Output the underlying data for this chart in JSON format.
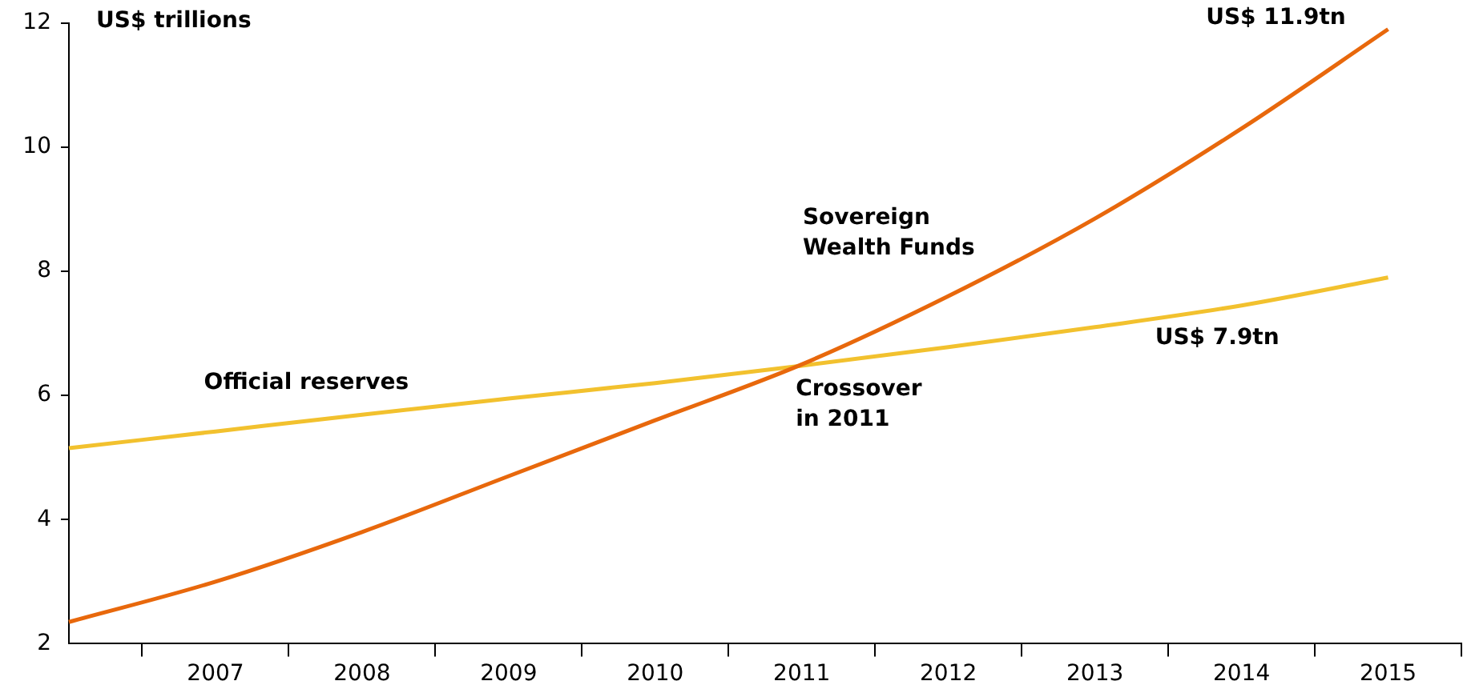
{
  "chart_data": {
    "type": "line",
    "ylabel": "US$ trillions",
    "x": [
      2006,
      2007,
      2008,
      2009,
      2010,
      2011,
      2012,
      2013,
      2014,
      2015
    ],
    "series": [
      {
        "name": "Sovereign Wealth Funds",
        "color": "#e8680c",
        "values": [
          2.35,
          3.0,
          3.8,
          4.7,
          5.6,
          6.5,
          7.6,
          8.85,
          10.3,
          11.9
        ]
      },
      {
        "name": "Official reserves",
        "color": "#f2c12e",
        "values": [
          5.15,
          5.42,
          5.69,
          5.95,
          6.2,
          6.48,
          6.78,
          7.1,
          7.45,
          7.9
        ]
      }
    ],
    "xlim": [
      2006,
      2015.5
    ],
    "xticks": [
      2007,
      2008,
      2009,
      2010,
      2011,
      2012,
      2013,
      2014,
      2015
    ],
    "ylim": [
      2,
      12
    ],
    "yticks": [
      2,
      4,
      6,
      8,
      10,
      12
    ],
    "annotations": [
      "US$ 11.9tn",
      "US$ 7.9tn",
      "Crossover\nin 2011"
    ],
    "grid": false,
    "legend": false,
    "marker": "none",
    "line_style": "solid"
  }
}
